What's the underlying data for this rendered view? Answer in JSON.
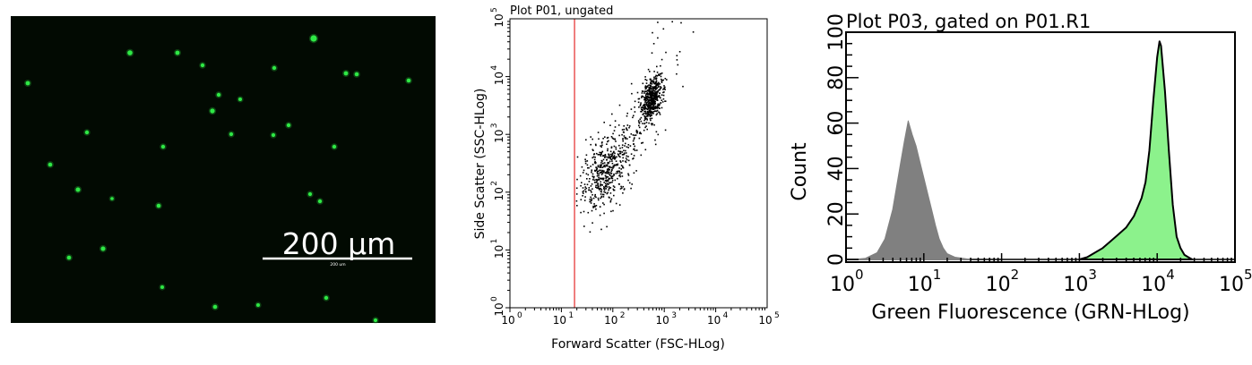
{
  "micrograph": {
    "background": "#020a02",
    "bead_color": "#2ee845",
    "scale_bar_label": "200 µm",
    "scale_bar_small_label": "200 um"
  },
  "chart_data": [
    {
      "type": "scatter",
      "title": "Plot P01, ungated",
      "xlabel": "Forward Scatter (FSC-HLog)",
      "ylabel": "Side Scatter (SSC-HLog)",
      "xscale": "log",
      "yscale": "log",
      "xlim": [
        1,
        100000
      ],
      "ylim": [
        1,
        100000
      ],
      "x_ticks": [
        {
          "base": "10",
          "exp": "0"
        },
        {
          "base": "10",
          "exp": "1"
        },
        {
          "base": "10",
          "exp": "2"
        },
        {
          "base": "10",
          "exp": "3"
        },
        {
          "base": "10",
          "exp": "4"
        },
        {
          "base": "10",
          "exp": "5"
        }
      ],
      "y_ticks": [
        {
          "base": "10",
          "exp": "0"
        },
        {
          "base": "10",
          "exp": "1"
        },
        {
          "base": "10",
          "exp": "2"
        },
        {
          "base": "10",
          "exp": "3"
        },
        {
          "base": "10",
          "exp": "4"
        },
        {
          "base": "10",
          "exp": "5"
        }
      ],
      "gate_line_x": 18,
      "gate_color": "#e00000",
      "grid": false,
      "populations": [
        {
          "center_log": [
            2.74,
            3.62
          ],
          "spread_log": [
            0.1,
            0.17
          ],
          "count": 520
        },
        {
          "center_log": [
            1.85,
            2.35
          ],
          "spread_log": [
            0.26,
            0.28
          ],
          "count": 480
        },
        {
          "center_log": [
            2.4,
            3.05
          ],
          "spread_log": [
            0.28,
            0.33
          ],
          "count": 110
        },
        {
          "center_log": [
            2.95,
            4.45
          ],
          "spread_log": [
            0.22,
            0.35
          ],
          "count": 28
        }
      ]
    },
    {
      "type": "area",
      "title": "Plot P03, gated on P01.R1",
      "xlabel": "Green Fluorescence (GRN-HLog)",
      "ylabel": "Count",
      "xscale": "log",
      "xlim": [
        1,
        100000
      ],
      "ylim": [
        0,
        100
      ],
      "x_ticks": [
        {
          "base": "10",
          "exp": "0"
        },
        {
          "base": "10",
          "exp": "1"
        },
        {
          "base": "10",
          "exp": "2"
        },
        {
          "base": "10",
          "exp": "3"
        },
        {
          "base": "10",
          "exp": "4"
        },
        {
          "base": "10",
          "exp": "5"
        }
      ],
      "y_ticks": [
        "0",
        "20",
        "40",
        "60",
        "80",
        "100"
      ],
      "grid": false,
      "series": [
        {
          "color": "#808080",
          "x": [
            1.26,
            1.78,
            2.51,
            3.16,
            3.98,
            5.01,
            5.62,
            6.31,
            7.08,
            7.94,
            8.91,
            10.0,
            11.2,
            12.6,
            14.1,
            15.8,
            17.8,
            20.0,
            25.1,
            31.6,
            39.8
          ],
          "y": [
            0,
            0.5,
            3,
            9,
            22,
            42,
            52,
            61,
            55,
            50,
            43,
            36,
            29,
            22,
            15,
            9,
            5,
            2.5,
            1,
            0.5,
            0
          ]
        },
        {
          "color": "#8cf28c",
          "x": [
            1000,
            1259,
            1585,
            1995,
            2512,
            3162,
            3981,
            5012,
            6310,
            7079,
            7943,
            8913,
            10000,
            10715,
            11220,
            12589,
            14125,
            15849,
            17783,
            19953,
            22387,
            25119,
            28184
          ],
          "y": [
            0,
            1,
            3,
            5,
            8,
            11,
            14,
            19,
            27,
            34,
            48,
            70,
            89,
            96,
            94,
            74,
            48,
            24,
            10,
            5,
            2,
            1,
            0
          ]
        }
      ]
    }
  ]
}
